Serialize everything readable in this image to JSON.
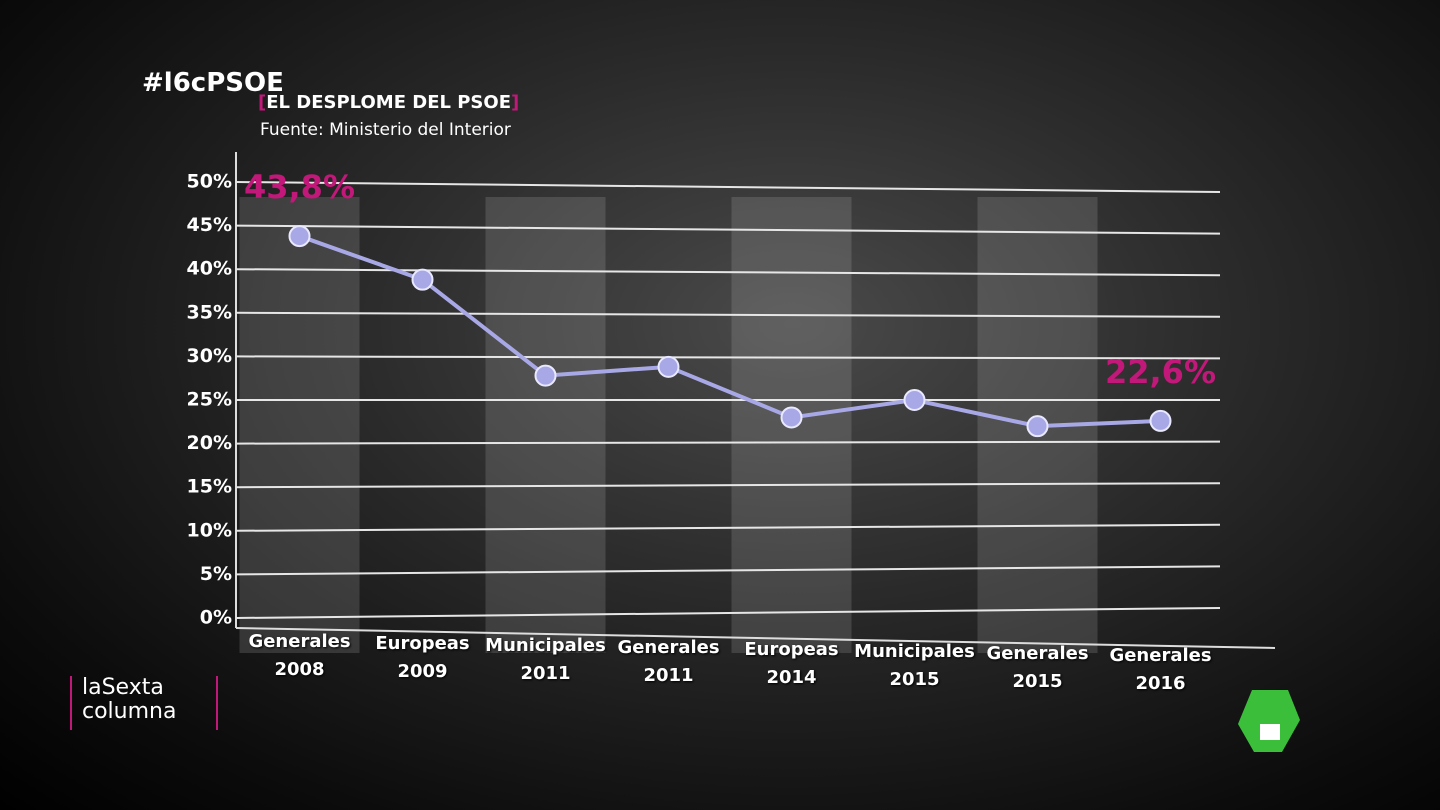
{
  "overlay": {
    "hashtag": "#l6cPSOE",
    "show_logo": "laSexta\ncolumna"
  },
  "chart_data": {
    "type": "line",
    "title": "EL DESPLOME DEL PSOE",
    "subtitle": "Fuente: Ministerio del Interior",
    "categories": [
      "Generales\n2008",
      "Europeas\n2009",
      "Municipales\n2011",
      "Generales\n2011",
      "Europeas\n2014",
      "Municipales\n2015",
      "Generales\n2015",
      "Generales\n2016"
    ],
    "series": [
      {
        "color": "#a9a8e6",
        "values": [
          43.8,
          38.8,
          27.8,
          28.8,
          23.0,
          25.0,
          22.0,
          22.6
        ],
        "value_labels": [
          "43,8%",
          null,
          null,
          null,
          null,
          null,
          null,
          "22,6%"
        ]
      }
    ],
    "ylim": [
      0,
      50
    ],
    "yticks": [
      {
        "value": 0,
        "label": "0%"
      },
      {
        "value": 5,
        "label": "5%"
      },
      {
        "value": 10,
        "label": "10%"
      },
      {
        "value": 15,
        "label": "15%"
      },
      {
        "value": 20,
        "label": "20%"
      },
      {
        "value": 25,
        "label": "25%"
      },
      {
        "value": 30,
        "label": "30%"
      },
      {
        "value": 35,
        "label": "35%"
      },
      {
        "value": 40,
        "label": "40%"
      },
      {
        "value": 45,
        "label": "45%"
      },
      {
        "value": 50,
        "label": "50%"
      }
    ],
    "grid": true
  }
}
